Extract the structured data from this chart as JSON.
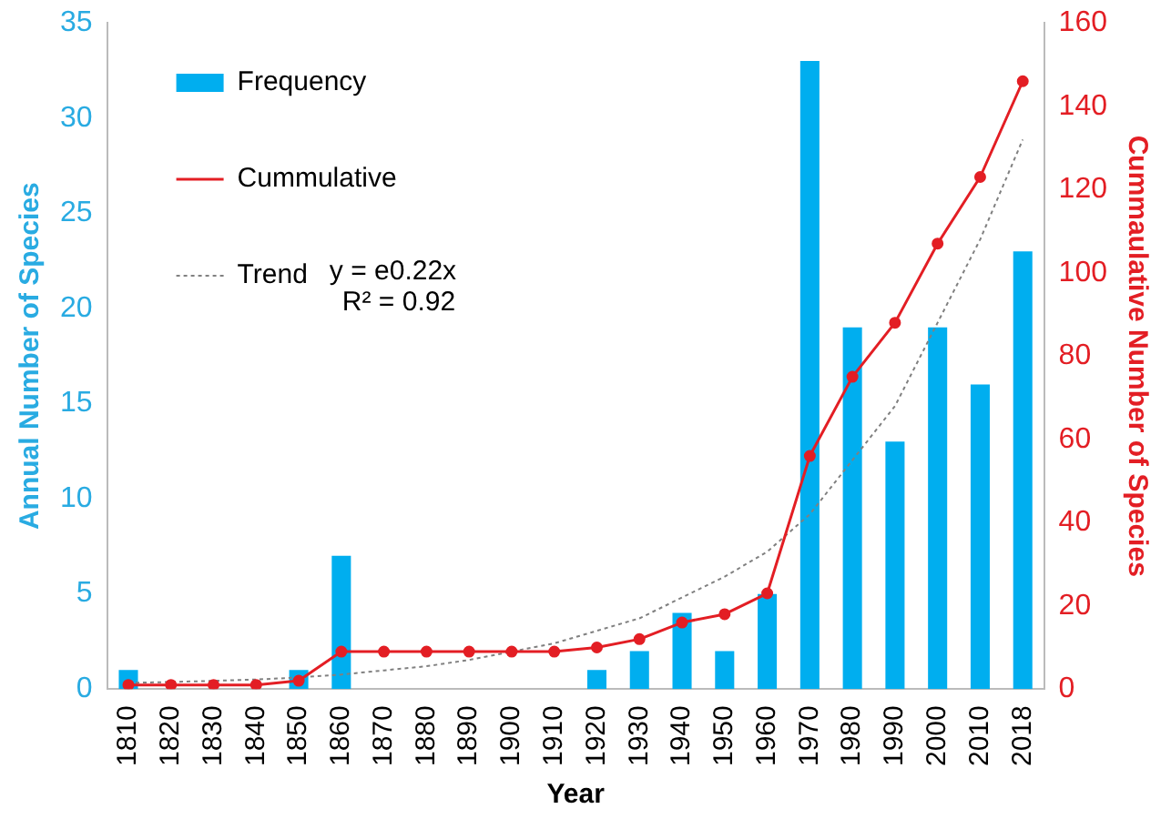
{
  "chart_data": {
    "type": "bar",
    "xlabel": "Year",
    "ylabel": "Annual Number of Species",
    "y2label": "Cummaulative Number of Species",
    "categories": [
      "1810",
      "1820",
      "1830",
      "1840",
      "1850",
      "1860",
      "1870",
      "1880",
      "1890",
      "1900",
      "1910",
      "1920",
      "1930",
      "1940",
      "1950",
      "1960",
      "1970",
      "1980",
      "1990",
      "2000",
      "2010",
      "2018"
    ],
    "series": [
      {
        "name": "Frequency",
        "color": "#00aeef",
        "values": [
          1,
          0,
          0,
          0,
          1,
          7,
          0,
          0,
          0,
          0,
          0,
          1,
          2,
          4,
          2,
          5,
          33,
          19,
          13,
          19,
          16,
          23
        ]
      },
      {
        "name": "Cummulative",
        "type": "line",
        "axis": "y2",
        "color": "#e31e24",
        "marker": "circle",
        "line_style": "solid",
        "values": [
          1,
          1,
          1,
          1,
          2,
          9,
          9,
          9,
          9,
          9,
          9,
          10,
          12,
          16,
          18,
          23,
          56,
          75,
          88,
          107,
          123,
          146
        ]
      },
      {
        "name": "Trend",
        "type": "line",
        "axis": "y2",
        "color": "#808080",
        "marker": "none",
        "line_style": "dotted",
        "values": [
          1.5,
          1.7,
          2,
          2.3,
          2.8,
          3.5,
          4.5,
          5.5,
          7,
          9,
          11,
          14,
          17,
          22,
          27,
          33,
          42,
          55,
          68,
          88,
          108,
          132
        ]
      }
    ],
    "ylim": [
      0,
      35
    ],
    "yticks": [
      0,
      5,
      10,
      15,
      20,
      25,
      30,
      35
    ],
    "y2lim": [
      0,
      160
    ],
    "y2ticks": [
      0,
      20,
      40,
      60,
      80,
      100,
      120,
      140,
      160
    ],
    "annotations": [
      "y = e0.22x",
      "R² = 0.92"
    ],
    "legend": "top left",
    "grid": false
  }
}
